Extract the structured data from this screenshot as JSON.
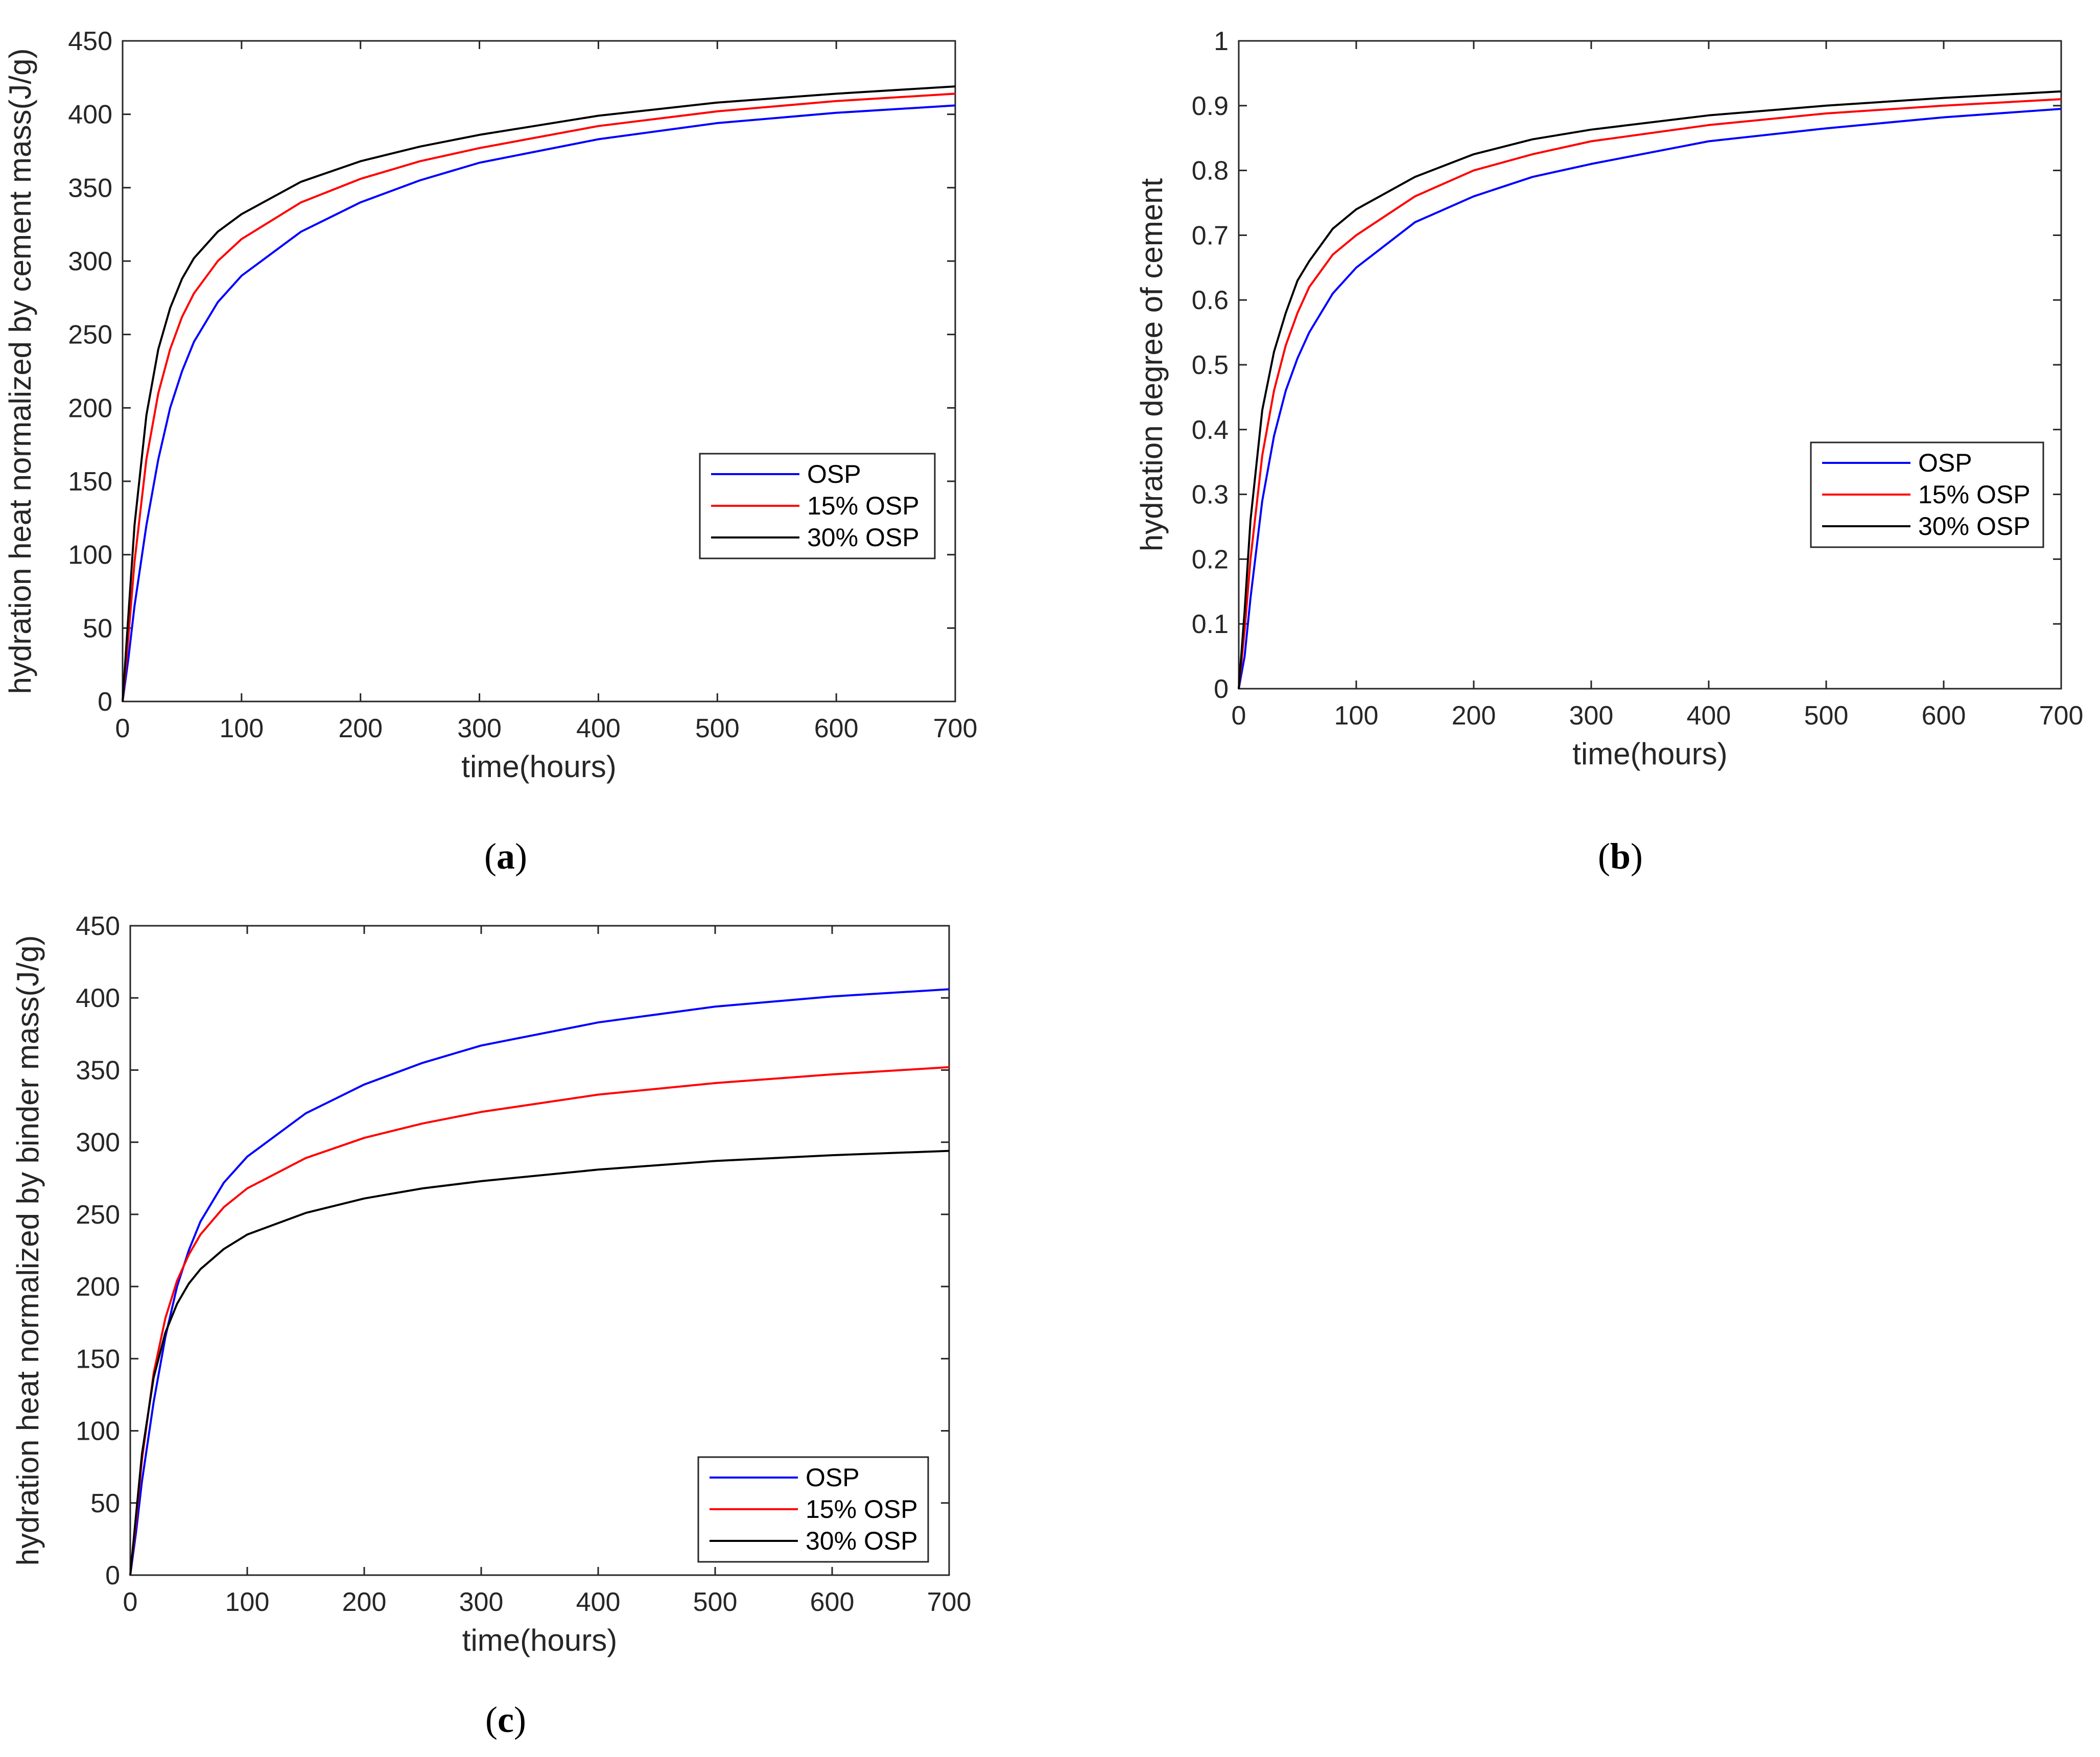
{
  "colors": {
    "OSP": "#0000ff",
    "15% OSP": "#ff0000",
    "30% OSP": "#000000",
    "axis": "#262626"
  },
  "chart_data": [
    {
      "id": "a",
      "caption": "a",
      "type": "line",
      "title": "",
      "xlabel": "time(hours)",
      "ylabel": "hydration heat normalized by cement mass(J/g)",
      "xlim": [
        0,
        700
      ],
      "ylim": [
        0,
        450
      ],
      "xticks": [
        0,
        100,
        200,
        300,
        400,
        500,
        600,
        700
      ],
      "yticks": [
        0,
        50,
        100,
        150,
        200,
        250,
        300,
        350,
        400,
        450
      ],
      "legend": "center-right",
      "x": [
        0,
        5,
        10,
        20,
        30,
        40,
        50,
        60,
        80,
        100,
        150,
        200,
        250,
        300,
        400,
        500,
        600,
        700
      ],
      "series": [
        {
          "name": "OSP",
          "values": [
            0,
            30,
            65,
            120,
            165,
            200,
            225,
            245,
            272,
            290,
            320,
            340,
            355,
            367,
            383,
            394,
            401,
            406
          ]
        },
        {
          "name": "15% OSP",
          "values": [
            0,
            45,
            95,
            165,
            210,
            240,
            262,
            278,
            300,
            315,
            340,
            356,
            368,
            377,
            392,
            402,
            409,
            414
          ]
        },
        {
          "name": "30% OSP",
          "values": [
            0,
            60,
            120,
            195,
            240,
            268,
            288,
            302,
            320,
            332,
            354,
            368,
            378,
            386,
            399,
            408,
            414,
            419
          ]
        }
      ]
    },
    {
      "id": "b",
      "caption": "b",
      "type": "line",
      "title": "",
      "xlabel": "time(hours)",
      "ylabel": "hydration degree of cement",
      "xlim": [
        0,
        700
      ],
      "ylim": [
        0,
        1
      ],
      "xticks": [
        0,
        100,
        200,
        300,
        400,
        500,
        600,
        700
      ],
      "yticks": [
        0,
        0.1,
        0.2,
        0.3,
        0.4,
        0.5,
        0.6,
        0.7,
        0.8,
        0.9,
        1
      ],
      "legend": "center-right",
      "x": [
        0,
        5,
        10,
        20,
        30,
        40,
        50,
        60,
        80,
        100,
        150,
        200,
        250,
        300,
        400,
        500,
        600,
        700
      ],
      "series": [
        {
          "name": "OSP",
          "values": [
            0,
            0.05,
            0.14,
            0.29,
            0.39,
            0.46,
            0.51,
            0.55,
            0.61,
            0.65,
            0.72,
            0.76,
            0.79,
            0.81,
            0.845,
            0.865,
            0.882,
            0.895
          ]
        },
        {
          "name": "15% OSP",
          "values": [
            0,
            0.09,
            0.2,
            0.36,
            0.46,
            0.53,
            0.58,
            0.62,
            0.67,
            0.7,
            0.76,
            0.8,
            0.825,
            0.845,
            0.87,
            0.888,
            0.9,
            0.91
          ]
        },
        {
          "name": "30% OSP",
          "values": [
            0,
            0.12,
            0.26,
            0.43,
            0.52,
            0.58,
            0.63,
            0.66,
            0.71,
            0.74,
            0.79,
            0.825,
            0.848,
            0.863,
            0.885,
            0.9,
            0.912,
            0.922
          ]
        }
      ]
    },
    {
      "id": "c",
      "caption": "c",
      "type": "line",
      "title": "",
      "xlabel": "time(hours)",
      "ylabel": "hydration heat normalized by binder mass(J/g)",
      "xlim": [
        0,
        700
      ],
      "ylim": [
        0,
        450
      ],
      "xticks": [
        0,
        100,
        200,
        300,
        400,
        500,
        600,
        700
      ],
      "yticks": [
        0,
        50,
        100,
        150,
        200,
        250,
        300,
        350,
        400,
        450
      ],
      "legend": "lower-right",
      "x": [
        0,
        5,
        10,
        20,
        30,
        40,
        50,
        60,
        80,
        100,
        150,
        200,
        250,
        300,
        400,
        500,
        600,
        700
      ],
      "series": [
        {
          "name": "OSP",
          "values": [
            0,
            30,
            65,
            120,
            165,
            200,
            225,
            245,
            272,
            290,
            320,
            340,
            355,
            367,
            383,
            394,
            401,
            406
          ]
        },
        {
          "name": "15% OSP",
          "values": [
            0,
            38,
            80,
            140,
            178,
            204,
            222,
            236,
            255,
            268,
            289,
            303,
            313,
            321,
            333,
            341,
            347,
            352
          ]
        },
        {
          "name": "30% OSP",
          "values": [
            0,
            42,
            84,
            137,
            168,
            188,
            202,
            212,
            226,
            236,
            251,
            261,
            268,
            273,
            281,
            287,
            291,
            294
          ]
        }
      ]
    }
  ]
}
